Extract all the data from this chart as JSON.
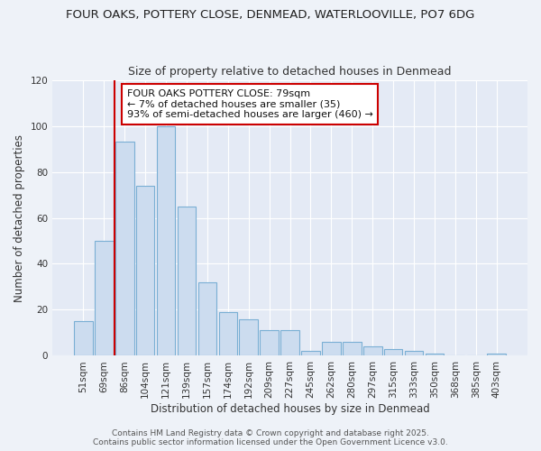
{
  "title_line1": "FOUR OAKS, POTTERY CLOSE, DENMEAD, WATERLOOVILLE, PO7 6DG",
  "title_line2": "Size of property relative to detached houses in Denmead",
  "xlabel": "Distribution of detached houses by size in Denmead",
  "ylabel": "Number of detached properties",
  "bar_labels": [
    "51sqm",
    "69sqm",
    "86sqm",
    "104sqm",
    "121sqm",
    "139sqm",
    "157sqm",
    "174sqm",
    "192sqm",
    "209sqm",
    "227sqm",
    "245sqm",
    "262sqm",
    "280sqm",
    "297sqm",
    "315sqm",
    "333sqm",
    "350sqm",
    "368sqm",
    "385sqm",
    "403sqm"
  ],
  "bar_values": [
    15,
    50,
    93,
    74,
    100,
    65,
    32,
    19,
    16,
    11,
    11,
    2,
    6,
    6,
    4,
    3,
    2,
    1,
    0,
    0,
    1
  ],
  "bar_color": "#ccdcef",
  "bar_edge_color": "#7aafd4",
  "red_line_x": 1.5,
  "ylim": [
    0,
    120
  ],
  "yticks": [
    0,
    20,
    40,
    60,
    80,
    100,
    120
  ],
  "annotation_title": "FOUR OAKS POTTERY CLOSE: 79sqm",
  "annotation_line1": "← 7% of detached houses are smaller (35)",
  "annotation_line2": "93% of semi-detached houses are larger (460) →",
  "annotation_box_color": "#ffffff",
  "annotation_box_edge": "#cc0000",
  "red_line_color": "#cc0000",
  "footer_line1": "Contains HM Land Registry data © Crown copyright and database right 2025.",
  "footer_line2": "Contains public sector information licensed under the Open Government Licence v3.0.",
  "background_color": "#eef2f8",
  "plot_bg_color": "#e4eaf5",
  "grid_color": "#ffffff",
  "title_fontsize": 9.5,
  "subtitle_fontsize": 9,
  "axis_label_fontsize": 8.5,
  "tick_fontsize": 7.5,
  "annotation_fontsize": 8,
  "footer_fontsize": 6.5
}
